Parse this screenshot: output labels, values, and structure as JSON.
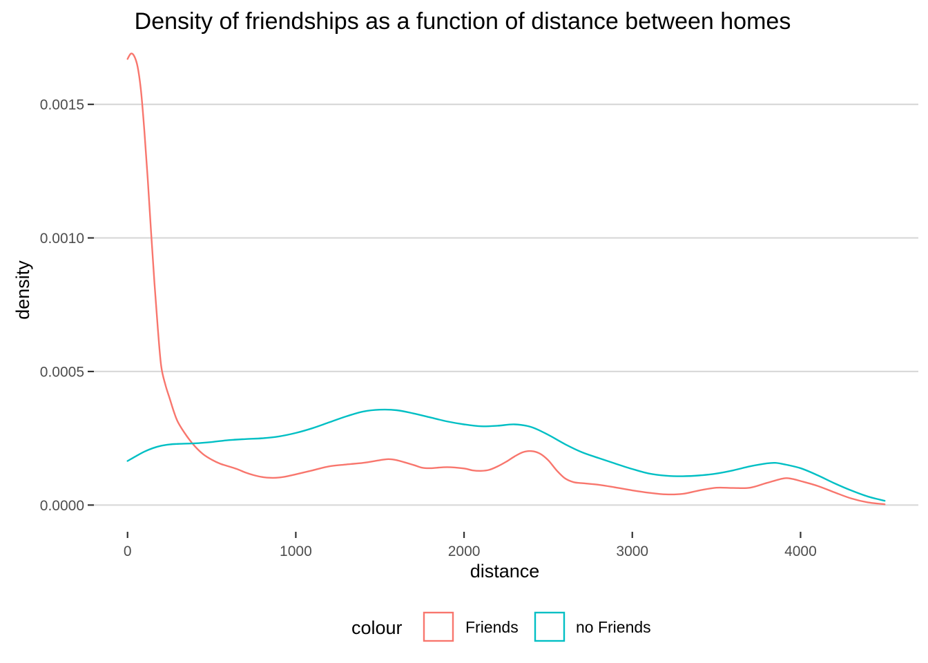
{
  "chart_data": {
    "type": "line",
    "title": "Density of friendships as a function of distance between homes",
    "xlabel": "distance",
    "ylabel": "density",
    "xlim": [
      -200,
      4700
    ],
    "ylim": [
      -0.0001,
      0.00172
    ],
    "x_ticks": [
      {
        "value": 0,
        "label": "0"
      },
      {
        "value": 1000,
        "label": "1000"
      },
      {
        "value": 2000,
        "label": "2000"
      },
      {
        "value": 3000,
        "label": "3000"
      },
      {
        "value": 4000,
        "label": "4000"
      }
    ],
    "y_ticks": [
      {
        "value": 0,
        "label": "0.0000"
      },
      {
        "value": 0.0005,
        "label": "0.0005"
      },
      {
        "value": 0.001,
        "label": "0.0010"
      },
      {
        "value": 0.0015,
        "label": "0.0015"
      }
    ],
    "grid": "horizontal",
    "legend": {
      "title": "colour",
      "position": "bottom"
    },
    "series": [
      {
        "name": "Friends",
        "color": "#F8766D",
        "points": [
          [
            0,
            0.00167
          ],
          [
            20,
            0.00169
          ],
          [
            40,
            0.00168
          ],
          [
            60,
            0.00164
          ],
          [
            80,
            0.00155
          ],
          [
            100,
            0.0014
          ],
          [
            120,
            0.00122
          ],
          [
            140,
            0.00102
          ],
          [
            160,
            0.00083
          ],
          [
            180,
            0.00066
          ],
          [
            200,
            0.00052
          ],
          [
            225,
            0.00045
          ],
          [
            250,
            0.0004
          ],
          [
            275,
            0.00035
          ],
          [
            300,
            0.00031
          ],
          [
            350,
            0.00026
          ],
          [
            400,
            0.00022
          ],
          [
            450,
            0.00019
          ],
          [
            500,
            0.00017
          ],
          [
            550,
            0.000155
          ],
          [
            600,
            0.000145
          ],
          [
            650,
            0.000135
          ],
          [
            700,
            0.000122
          ],
          [
            750,
            0.000112
          ],
          [
            800,
            0.000105
          ],
          [
            850,
            0.000102
          ],
          [
            900,
            0.000103
          ],
          [
            950,
            0.000108
          ],
          [
            1000,
            0.000115
          ],
          [
            1100,
            0.00013
          ],
          [
            1200,
            0.000145
          ],
          [
            1300,
            0.000152
          ],
          [
            1400,
            0.000158
          ],
          [
            1500,
            0.000168
          ],
          [
            1550,
            0.000172
          ],
          [
            1600,
            0.000168
          ],
          [
            1700,
            0.00015
          ],
          [
            1750,
            0.00014
          ],
          [
            1800,
            0.000138
          ],
          [
            1900,
            0.000142
          ],
          [
            2000,
            0.000137
          ],
          [
            2050,
            0.00013
          ],
          [
            2100,
            0.000128
          ],
          [
            2150,
            0.000132
          ],
          [
            2200,
            0.000145
          ],
          [
            2250,
            0.000162
          ],
          [
            2300,
            0.000182
          ],
          [
            2350,
            0.000198
          ],
          [
            2400,
            0.000202
          ],
          [
            2450,
            0.000193
          ],
          [
            2500,
            0.000168
          ],
          [
            2550,
            0.00013
          ],
          [
            2600,
            0.0001
          ],
          [
            2650,
            8.6e-05
          ],
          [
            2700,
            8.2e-05
          ],
          [
            2800,
            7.6e-05
          ],
          [
            2900,
            6.6e-05
          ],
          [
            3000,
            5.5e-05
          ],
          [
            3100,
            4.6e-05
          ],
          [
            3200,
            4e-05
          ],
          [
            3300,
            4.2e-05
          ],
          [
            3400,
            5.5e-05
          ],
          [
            3500,
            6.5e-05
          ],
          [
            3600,
            6.4e-05
          ],
          [
            3700,
            6.5e-05
          ],
          [
            3800,
            8.3e-05
          ],
          [
            3900,
            0.0001
          ],
          [
            3950,
            9.8e-05
          ],
          [
            4000,
            9e-05
          ],
          [
            4100,
            7.2e-05
          ],
          [
            4200,
            4.8e-05
          ],
          [
            4300,
            2.5e-05
          ],
          [
            4400,
            1e-05
          ],
          [
            4500,
            3e-06
          ]
        ]
      },
      {
        "name": "no Friends",
        "color": "#00BFC4",
        "points": [
          [
            0,
            0.000165
          ],
          [
            50,
            0.000183
          ],
          [
            100,
            0.0002
          ],
          [
            150,
            0.000213
          ],
          [
            200,
            0.000222
          ],
          [
            250,
            0.000227
          ],
          [
            300,
            0.000229
          ],
          [
            400,
            0.000231
          ],
          [
            500,
            0.000236
          ],
          [
            600,
            0.000243
          ],
          [
            700,
            0.000247
          ],
          [
            800,
            0.00025
          ],
          [
            900,
            0.000257
          ],
          [
            1000,
            0.00027
          ],
          [
            1100,
            0.000288
          ],
          [
            1200,
            0.00031
          ],
          [
            1300,
            0.000332
          ],
          [
            1400,
            0.00035
          ],
          [
            1500,
            0.000357
          ],
          [
            1600,
            0.000355
          ],
          [
            1700,
            0.000343
          ],
          [
            1800,
            0.000328
          ],
          [
            1900,
            0.000313
          ],
          [
            2000,
            0.000302
          ],
          [
            2100,
            0.000295
          ],
          [
            2200,
            0.000297
          ],
          [
            2300,
            0.000302
          ],
          [
            2400,
            0.000292
          ],
          [
            2500,
            0.000263
          ],
          [
            2600,
            0.000228
          ],
          [
            2700,
            0.000198
          ],
          [
            2800,
            0.000176
          ],
          [
            2900,
            0.000155
          ],
          [
            3000,
            0.000135
          ],
          [
            3100,
            0.000118
          ],
          [
            3200,
            0.00011
          ],
          [
            3300,
            0.000108
          ],
          [
            3400,
            0.000111
          ],
          [
            3500,
            0.000118
          ],
          [
            3600,
            0.00013
          ],
          [
            3700,
            0.000145
          ],
          [
            3800,
            0.000156
          ],
          [
            3850,
            0.000158
          ],
          [
            3900,
            0.000153
          ],
          [
            4000,
            0.000138
          ],
          [
            4100,
            0.000112
          ],
          [
            4200,
            8.2e-05
          ],
          [
            4300,
            5.5e-05
          ],
          [
            4400,
            3.2e-05
          ],
          [
            4500,
            1.6e-05
          ]
        ]
      }
    ]
  }
}
